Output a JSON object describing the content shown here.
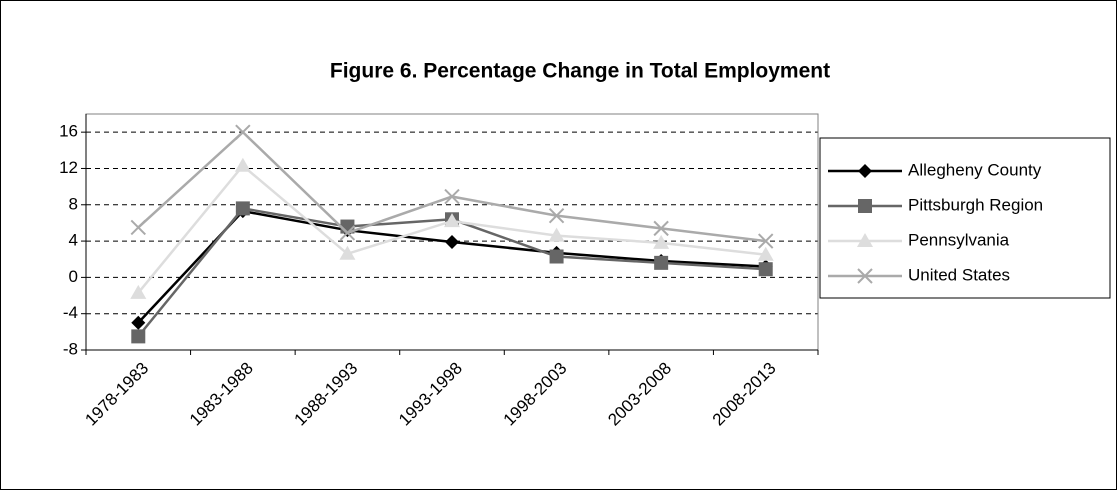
{
  "chart_data": {
    "type": "line",
    "title": "Figure 6.  Percentage Change in Total Employment",
    "categories": [
      "1978-1983",
      "1983-1988",
      "1988-1993",
      "1993-1998",
      "1998-2003",
      "2003-2008",
      "2008-2013"
    ],
    "series": [
      {
        "name": "Allegheny County",
        "color": "#000000",
        "marker": "diamond",
        "values": [
          -5,
          7.3,
          5.2,
          3.9,
          2.7,
          1.8,
          1.2
        ]
      },
      {
        "name": "Pittsburgh Region",
        "color": "#666666",
        "marker": "square",
        "values": [
          -6.5,
          7.6,
          5.6,
          6.4,
          2.3,
          1.6,
          0.9
        ]
      },
      {
        "name": "Pennsylvania",
        "color": "#dddddd",
        "marker": "triangle",
        "values": [
          -1.7,
          12.3,
          2.6,
          6.2,
          4.6,
          3.8,
          2.5
        ]
      },
      {
        "name": "United States",
        "color": "#aaaaaa",
        "marker": "x",
        "values": [
          5.5,
          16,
          4.9,
          8.9,
          6.8,
          5.4,
          4.0
        ]
      }
    ],
    "ylim": [
      -8,
      18
    ],
    "yticks": [
      -8,
      -4,
      0,
      4,
      8,
      12,
      16
    ],
    "grid": true,
    "legend": "right"
  }
}
